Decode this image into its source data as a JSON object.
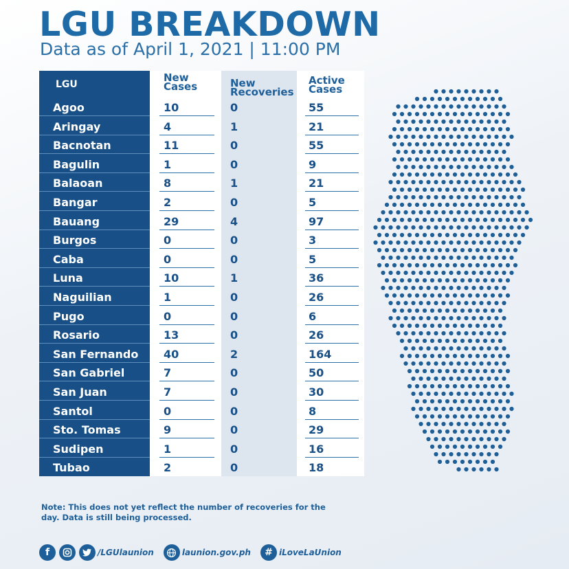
{
  "title": "LGU BREAKDOWN",
  "subtitle": "Data as of April 1, 2021 | 11:00 PM",
  "table": {
    "headers": {
      "lgu": "LGU",
      "new_cases": [
        "New",
        "Cases"
      ],
      "new_recoveries": [
        "New",
        "Recoveries"
      ],
      "active_cases": [
        "Active",
        "Cases"
      ]
    },
    "rows": [
      {
        "lgu": "Agoo",
        "new_cases": "10",
        "new_recoveries": "0",
        "active_cases": "55"
      },
      {
        "lgu": "Aringay",
        "new_cases": "4",
        "new_recoveries": "1",
        "active_cases": "21"
      },
      {
        "lgu": "Bacnotan",
        "new_cases": "11",
        "new_recoveries": "0",
        "active_cases": "55"
      },
      {
        "lgu": "Bagulin",
        "new_cases": "1",
        "new_recoveries": "0",
        "active_cases": "9"
      },
      {
        "lgu": "Balaoan",
        "new_cases": "8",
        "new_recoveries": "1",
        "active_cases": "21"
      },
      {
        "lgu": "Bangar",
        "new_cases": "2",
        "new_recoveries": "0",
        "active_cases": "5"
      },
      {
        "lgu": "Bauang",
        "new_cases": "29",
        "new_recoveries": "4",
        "active_cases": "97"
      },
      {
        "lgu": "Burgos",
        "new_cases": "0",
        "new_recoveries": "0",
        "active_cases": "3"
      },
      {
        "lgu": "Caba",
        "new_cases": "0",
        "new_recoveries": "0",
        "active_cases": "5"
      },
      {
        "lgu": "Luna",
        "new_cases": "10",
        "new_recoveries": "1",
        "active_cases": "36"
      },
      {
        "lgu": "Naguilian",
        "new_cases": "1",
        "new_recoveries": "0",
        "active_cases": "26"
      },
      {
        "lgu": "Pugo",
        "new_cases": "0",
        "new_recoveries": "0",
        "active_cases": "6"
      },
      {
        "lgu": "Rosario",
        "new_cases": "13",
        "new_recoveries": "0",
        "active_cases": "26"
      },
      {
        "lgu": "San Fernando",
        "new_cases": "40",
        "new_recoveries": "2",
        "active_cases": "164"
      },
      {
        "lgu": "San Gabriel",
        "new_cases": "7",
        "new_recoveries": "0",
        "active_cases": "50"
      },
      {
        "lgu": "San Juan",
        "new_cases": "7",
        "new_recoveries": "0",
        "active_cases": "30"
      },
      {
        "lgu": "Santol",
        "new_cases": "0",
        "new_recoveries": "0",
        "active_cases": "8"
      },
      {
        "lgu": "Sto. Tomas",
        "new_cases": "9",
        "new_recoveries": "0",
        "active_cases": "29"
      },
      {
        "lgu": "Sudipen",
        "new_cases": "1",
        "new_recoveries": "0",
        "active_cases": "16"
      },
      {
        "lgu": "Tubao",
        "new_cases": "2",
        "new_recoveries": "0",
        "active_cases": "18"
      }
    ]
  },
  "note": "Note: This does not yet reflect the number of recoveries for the day. Data is still being processed.",
  "footer": {
    "social_handle": "/LGUlaunion",
    "website": "launion.gov.ph",
    "hashtag": "iLoveLaUnion",
    "icons": [
      "facebook-icon",
      "instagram-icon",
      "twitter-icon",
      "globe-icon",
      "hashtag-icon"
    ]
  },
  "colors": {
    "primary": "#1e6aa6",
    "dark_column": "#174f86",
    "light_column": "#dde5ef",
    "map_dots": "#1f5f96"
  }
}
